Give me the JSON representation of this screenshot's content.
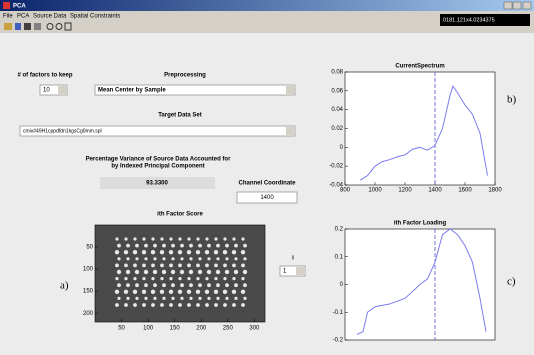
{
  "window": {
    "title": "PCA",
    "menu": [
      "File",
      "PCA",
      "Source Data",
      "Spatial Constraints"
    ],
    "status": "0181.121x4.0234375"
  },
  "controls": {
    "factors_label": "# of factors to keep",
    "factors_value": "10",
    "preprocessing_label": "Preprocessing",
    "preprocessing_value": "Mean Center by Sample",
    "target_label": "Target Data Set",
    "target_value": "cmix#49H1cppdfdn1kgsCg0mm.spl",
    "variance_label": [
      "Percentage Variance of Source Data Accounted for",
      "by Indexed  Principal Component"
    ],
    "variance_value": "93.3300",
    "channel_label": "Channel Coordinate",
    "channel_value": 1400,
    "score_label": "ith Factor Score",
    "i_label": "i",
    "i_value": "1"
  },
  "panel_labels": [
    "a)",
    "b)",
    "c)"
  ],
  "chart_data": [
    {
      "type": "line",
      "title": "CurrentSpectrum",
      "color": "#7b7bf0",
      "x": [
        900,
        950,
        1000,
        1050,
        1100,
        1150,
        1200,
        1250,
        1300,
        1350,
        1400,
        1450,
        1500,
        1520,
        1550,
        1600,
        1650,
        1700,
        1750
      ],
      "values": [
        -0.035,
        -0.03,
        -0.02,
        -0.015,
        -0.013,
        -0.01,
        -0.008,
        -0.002,
        0.0,
        -0.003,
        0.002,
        0.02,
        0.055,
        0.065,
        0.058,
        0.045,
        0.035,
        0.015,
        -0.03
      ],
      "xlim": [
        800,
        1800
      ],
      "xticks": [
        800,
        1000,
        1200,
        1400,
        1600,
        1800
      ],
      "ylim": [
        -0.04,
        0.08
      ],
      "yticks": [
        -0.04,
        -0.02,
        0,
        0.02,
        0.04,
        0.06,
        0.08
      ]
    },
    {
      "type": "line",
      "title": "ith Factor Loading",
      "color": "#7b7bf0",
      "x": [
        880,
        920,
        950,
        1000,
        1100,
        1200,
        1300,
        1350,
        1400,
        1450,
        1500,
        1550,
        1600,
        1650,
        1700,
        1740
      ],
      "values": [
        -0.18,
        -0.17,
        -0.1,
        -0.08,
        -0.07,
        -0.05,
        0.0,
        0.02,
        0.08,
        0.18,
        0.2,
        0.18,
        0.14,
        0.08,
        -0.05,
        -0.17
      ],
      "xlim": [
        800,
        1800
      ],
      "ylim": [
        -0.2,
        0.2
      ],
      "yticks": [
        -0.2,
        -0.1,
        0,
        0.1,
        0.2
      ]
    },
    {
      "type": "image",
      "xlim": [
        0,
        320
      ],
      "xticks": [
        50,
        100,
        150,
        200,
        250,
        300
      ],
      "ylim": [
        0,
        220
      ],
      "yticks": [
        50,
        100,
        150,
        200
      ]
    }
  ]
}
